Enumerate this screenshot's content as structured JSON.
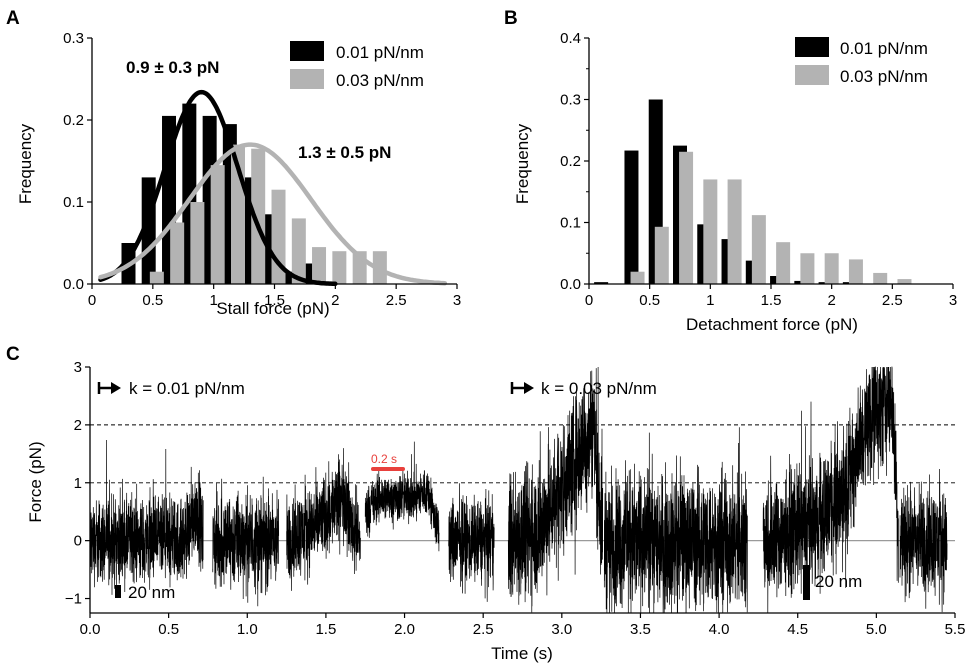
{
  "colors": {
    "dark": "#000000",
    "light": "#b3b3b3",
    "scale_bar_red": "#e8403c",
    "zero_line": "#9a9a9a"
  },
  "panels": {
    "A": "A",
    "B": "B",
    "C": "C"
  },
  "chart_data": [
    {
      "type": "bar",
      "panel": "A",
      "xlabel": "Stall force (pN)",
      "ylabel": "Frequency",
      "xlim": [
        0,
        3
      ],
      "ylim": [
        0,
        0.3
      ],
      "xticks": [
        0,
        0.5,
        1,
        1.5,
        2,
        2.5,
        3
      ],
      "xtick_labels": [
        "0",
        "0.5",
        "1",
        "1.5",
        "2",
        "2.5",
        "3"
      ],
      "yticks": [
        0,
        0.1,
        0.2,
        0.3
      ],
      "ytick_labels": [
        "0.0",
        "0.1",
        "0.2",
        "0.3"
      ],
      "legend": "top-right",
      "series": [
        {
          "name": "0.01 pN/nm",
          "color": "#000000",
          "x": [
            0.3,
            0.466,
            0.633,
            0.8,
            0.967,
            1.133,
            1.3,
            1.467,
            1.633,
            1.8
          ],
          "values": [
            0.05,
            0.13,
            0.205,
            0.22,
            0.205,
            0.195,
            0.13,
            0.085,
            0.015,
            0.025
          ],
          "fit": {
            "mean": 0.9,
            "sd": 0.3,
            "peak": 0.234
          }
        },
        {
          "name": "0.03 pN/nm",
          "color": "#b3b3b3",
          "x": [
            0.533,
            0.7,
            0.866,
            1.033,
            1.2,
            1.366,
            1.533,
            1.7,
            1.866,
            2.033,
            2.2,
            2.366
          ],
          "values": [
            0.015,
            0.075,
            0.1,
            0.145,
            0.17,
            0.165,
            0.115,
            0.08,
            0.045,
            0.04,
            0.04,
            0.04
          ],
          "fit": {
            "mean": 1.3,
            "sd": 0.5,
            "peak": 0.17
          }
        }
      ],
      "annotations": [
        "0.9 ± 0.3 pN",
        "1.3 ± 0.5 pN"
      ]
    },
    {
      "type": "bar",
      "panel": "B",
      "xlabel": "Detachment force (pN)",
      "ylabel": "Frequency",
      "xlim": [
        0,
        3
      ],
      "ylim": [
        0,
        0.4
      ],
      "xticks": [
        0,
        0.5,
        1,
        1.5,
        2,
        2.5,
        3
      ],
      "xtick_labels": [
        "0",
        "0.5",
        "1",
        "1.5",
        "2",
        "2.5",
        "3"
      ],
      "yticks": [
        0,
        0.1,
        0.2,
        0.3,
        0.4
      ],
      "ytick_labels": [
        "0.0",
        "0.1",
        "0.2",
        "0.3",
        "0.4"
      ],
      "legend": "top-right",
      "series": [
        {
          "name": "0.01 pN/nm",
          "color": "#000000",
          "x": [
            0.1,
            0.35,
            0.55,
            0.75,
            0.95,
            1.15,
            1.35,
            1.55,
            1.75,
            1.95,
            2.15
          ],
          "values": [
            0.003,
            0.217,
            0.3,
            0.225,
            0.097,
            0.073,
            0.038,
            0.013,
            0.005,
            0.003,
            0.003
          ]
        },
        {
          "name": "0.03 pN/nm",
          "color": "#b3b3b3",
          "x": [
            0.4,
            0.6,
            0.8,
            1.0,
            1.2,
            1.4,
            1.6,
            1.8,
            2.0,
            2.2,
            2.4,
            2.6
          ],
          "values": [
            0.02,
            0.093,
            0.215,
            0.17,
            0.17,
            0.112,
            0.068,
            0.05,
            0.05,
            0.04,
            0.018,
            0.008
          ]
        }
      ]
    },
    {
      "type": "line",
      "panel": "C",
      "xlabel": "Time (s)",
      "ylabel": "Force (pN)",
      "xlim": [
        0,
        5.5
      ],
      "ylim": [
        -1.25,
        3
      ],
      "xticks": [
        0,
        0.5,
        1,
        1.5,
        2,
        2.5,
        3,
        3.5,
        4,
        4.5,
        5,
        5.5
      ],
      "xtick_labels": [
        "0.0",
        "0.5",
        "1.0",
        "1.5",
        "2.0",
        "2.5",
        "3.0",
        "3.5",
        "4.0",
        "4.5",
        "5.0",
        "5.5"
      ],
      "yticks": [
        -1,
        0,
        1,
        2,
        3
      ],
      "ytick_labels": [
        "−1",
        "0",
        "1",
        "2",
        "3"
      ],
      "reference_lines": [
        1,
        2
      ],
      "stiffness_labels": [
        "k = 0.01 pN/nm",
        "k = 0.03 pN/nm"
      ],
      "scale_bars": {
        "time": "0.2 s",
        "distance_1": "20 nm",
        "distance_2": "20 nm"
      },
      "series": [
        {
          "name": "k = 0.01 pN/nm",
          "segments": [
            {
              "t": [
                0.0,
                0.3,
                0.6,
                0.68,
                0.72
              ],
              "mean": [
                0.0,
                0.0,
                0.0,
                0.6,
                0.0
              ],
              "noise": 0.35
            },
            {
              "t": [
                0.78,
                1.0,
                1.2
              ],
              "mean": [
                0.0,
                0.0,
                0.0
              ],
              "noise": 0.4
            },
            {
              "t": [
                1.25,
                1.45,
                1.62,
                1.66,
                1.72
              ],
              "mean": [
                0.0,
                0.3,
                0.8,
                0.3,
                0.0
              ],
              "noise": 0.35
            },
            {
              "t": [
                1.75,
                1.85,
                2.05,
                2.15,
                2.22
              ],
              "mean": [
                0.5,
                0.75,
                0.75,
                0.85,
                0.1
              ],
              "noise": 0.2
            },
            {
              "t": [
                2.28,
                2.45,
                2.57
              ],
              "mean": [
                0.0,
                0.0,
                0.0
              ],
              "noise": 0.35
            }
          ]
        },
        {
          "name": "k = 0.03 pN/nm",
          "segments": [
            {
              "t": [
                2.66,
                2.85,
                3.0,
                3.2,
                3.26
              ],
              "mean": [
                0.0,
                0.2,
                0.9,
                2.0,
                0.1
              ],
              "noise": 0.55
            },
            {
              "t": [
                3.27,
                3.5,
                3.9,
                4.18
              ],
              "mean": [
                0.0,
                0.0,
                0.0,
                0.0
              ],
              "noise": 0.55
            },
            {
              "t": [
                4.28,
                4.6,
                4.8,
                4.95,
                5.1,
                5.14
              ],
              "mean": [
                0.0,
                0.3,
                0.9,
                2.1,
                2.5,
                0.1
              ],
              "noise": 0.5
            },
            {
              "t": [
                5.15,
                5.3,
                5.45
              ],
              "mean": [
                0.0,
                0.0,
                0.0
              ],
              "noise": 0.45
            }
          ]
        }
      ]
    }
  ]
}
